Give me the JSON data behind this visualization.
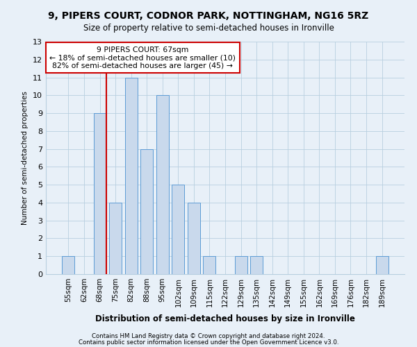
{
  "title1": "9, PIPERS COURT, CODNOR PARK, NOTTINGHAM, NG16 5RZ",
  "title2": "Size of property relative to semi-detached houses in Ironville",
  "xlabel": "Distribution of semi-detached houses by size in Ironville",
  "ylabel": "Number of semi-detached properties",
  "categories": [
    "55sqm",
    "62sqm",
    "68sqm",
    "75sqm",
    "82sqm",
    "88sqm",
    "95sqm",
    "102sqm",
    "109sqm",
    "115sqm",
    "122sqm",
    "129sqm",
    "135sqm",
    "142sqm",
    "149sqm",
    "155sqm",
    "162sqm",
    "169sqm",
    "176sqm",
    "182sqm",
    "189sqm"
  ],
  "values": [
    1,
    0,
    9,
    4,
    11,
    7,
    10,
    5,
    4,
    1,
    0,
    1,
    1,
    0,
    0,
    0,
    0,
    0,
    0,
    0,
    1
  ],
  "bar_color": "#c9d9ec",
  "bar_edge_color": "#5b9bd5",
  "red_line_x": 2.4,
  "annotation_text_lines": [
    "9 PIPERS COURT: 67sqm",
    "← 18% of semi-detached houses are smaller (10)",
    "82% of semi-detached houses are larger (45) →"
  ],
  "annotation_box_color": "white",
  "annotation_box_edge": "#cc0000",
  "red_line_color": "#cc0000",
  "ylim": [
    0,
    13
  ],
  "yticks": [
    0,
    1,
    2,
    3,
    4,
    5,
    6,
    7,
    8,
    9,
    10,
    11,
    12,
    13
  ],
  "grid_color": "#b8cfe0",
  "footer1": "Contains HM Land Registry data © Crown copyright and database right 2024.",
  "footer2": "Contains public sector information licensed under the Open Government Licence v3.0.",
  "bg_color": "#e8f0f8"
}
